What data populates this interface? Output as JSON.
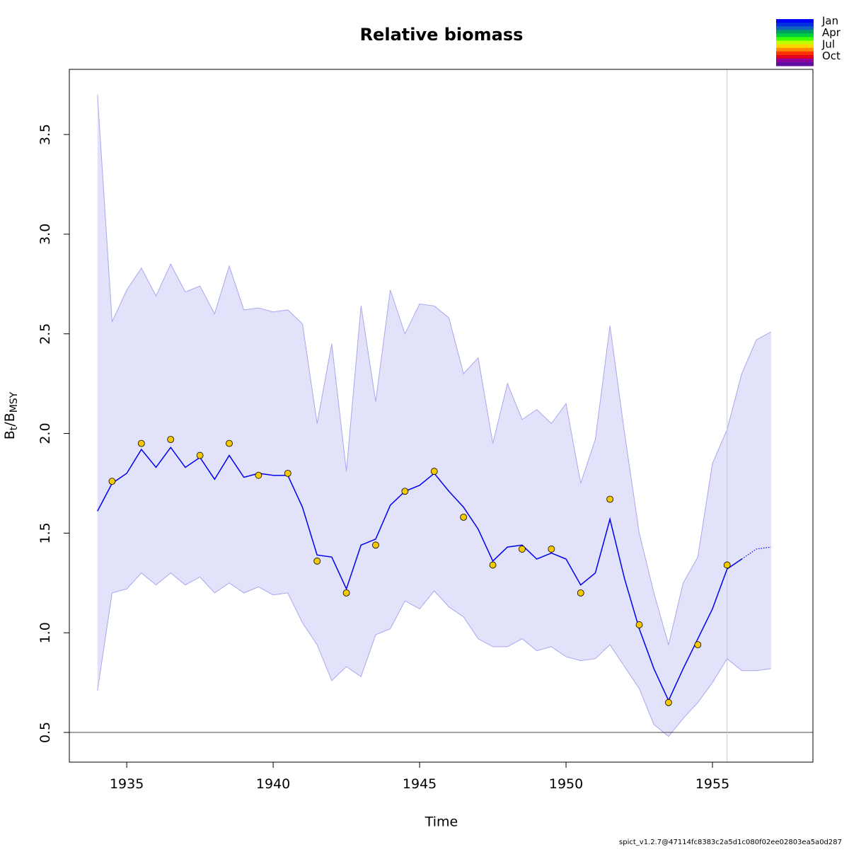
{
  "chart_data": {
    "type": "line",
    "title": "Relative biomass",
    "xlabel": "Time",
    "ylabel": [
      {
        "text": "B"
      },
      {
        "text": "t",
        "sub": true
      },
      {
        "text": "/B"
      },
      {
        "text": "MSY",
        "sub": true
      }
    ],
    "footer": "spict_v1.2.7@47114fc8383c2a5d1c080f02ee02803ea5a0d287",
    "xlim": [
      1933.04,
      1958.43
    ],
    "ylim": [
      0.351,
      3.827
    ],
    "xticks": [
      1935,
      1940,
      1945,
      1950,
      1955
    ],
    "yticks": [
      0.5,
      {
        "value": 1,
        "label": "1.0"
      },
      1.5,
      {
        "value": 2,
        "label": "2.0"
      },
      2.5,
      {
        "value": 3,
        "label": "3.0"
      },
      3.5
    ],
    "x": [
      1934,
      1934.5,
      1935,
      1935.5,
      1936,
      1936.5,
      1937,
      1937.5,
      1938,
      1938.5,
      1939,
      1939.5,
      1940,
      1940.5,
      1941,
      1941.5,
      1942,
      1942.5,
      1943,
      1943.5,
      1944,
      1944.5,
      1945,
      1945.5,
      1946,
      1946.5,
      1947,
      1947.5,
      1948,
      1948.5,
      1949,
      1949.5,
      1950,
      1950.5,
      1951,
      1951.5,
      1952,
      1952.5,
      1953,
      1953.5,
      1954,
      1954.5,
      1955,
      1955.5,
      1956,
      1956.5,
      1957
    ],
    "ci_color": "#e2e2fb",
    "ci_border": "#a8a8ee",
    "ci_upper": [
      3.7,
      2.56,
      2.72,
      2.83,
      2.69,
      2.85,
      2.71,
      2.74,
      2.6,
      2.84,
      2.62,
      2.63,
      2.61,
      2.62,
      2.55,
      2.05,
      2.45,
      1.81,
      2.64,
      2.16,
      2.72,
      2.5,
      2.65,
      2.64,
      2.58,
      2.3,
      2.38,
      1.95,
      2.25,
      2.07,
      2.12,
      2.05,
      2.15,
      1.75,
      1.97,
      2.54,
      2.0,
      1.5,
      1.2,
      0.94,
      1.25,
      1.38,
      1.85,
      2.02,
      2.3,
      2.47,
      2.51
    ],
    "ci_lower": [
      0.71,
      1.2,
      1.22,
      1.3,
      1.24,
      1.3,
      1.24,
      1.28,
      1.2,
      1.25,
      1.2,
      1.23,
      1.19,
      1.2,
      1.05,
      0.94,
      0.76,
      0.83,
      0.78,
      0.99,
      1.02,
      1.16,
      1.12,
      1.21,
      1.13,
      1.08,
      0.97,
      0.93,
      0.93,
      0.97,
      0.91,
      0.93,
      0.88,
      0.86,
      0.87,
      0.94,
      0.83,
      0.72,
      0.54,
      0.48,
      0.57,
      0.65,
      0.75,
      0.87,
      0.81,
      0.81,
      0.82
    ],
    "series": [
      {
        "color": "#0000ee",
        "dashed": false,
        "values": [
          1.61,
          1.75,
          1.8,
          1.92,
          1.83,
          1.93,
          1.83,
          1.88,
          1.77,
          1.89,
          1.78,
          1.8,
          1.79,
          1.79,
          1.63,
          1.39,
          1.38,
          1.22,
          1.44,
          1.47,
          1.64,
          1.71,
          1.74,
          1.8,
          1.71,
          1.63,
          1.52,
          1.36,
          1.43,
          1.44,
          1.37,
          1.4,
          1.37,
          1.24,
          1.3,
          1.57,
          1.27,
          1.02,
          0.82,
          0.66,
          0.82,
          0.97,
          1.12,
          1.32,
          1.37,
          null,
          null
        ]
      },
      {
        "color": "#0000ee",
        "dashed": true,
        "values": [
          null,
          null,
          null,
          null,
          null,
          null,
          null,
          null,
          null,
          null,
          null,
          null,
          null,
          null,
          null,
          null,
          null,
          null,
          null,
          null,
          null,
          null,
          null,
          null,
          null,
          null,
          null,
          null,
          null,
          null,
          null,
          null,
          null,
          null,
          null,
          null,
          null,
          null,
          null,
          null,
          null,
          null,
          null,
          null,
          1.37,
          1.42,
          1.43
        ]
      }
    ],
    "points": {
      "color": "#f5c800",
      "x": [
        1934.5,
        1935.5,
        1936.5,
        1937.5,
        1938.5,
        1939.5,
        1940.5,
        1941.5,
        1942.5,
        1943.5,
        1944.5,
        1945.5,
        1946.5,
        1947.5,
        1948.5,
        1949.5,
        1950.5,
        1951.5,
        1952.5,
        1953.5,
        1954.5,
        1955.5
      ],
      "values": [
        1.76,
        1.95,
        1.97,
        1.89,
        1.95,
        1.79,
        1.8,
        1.36,
        1.2,
        1.44,
        1.71,
        1.81,
        1.58,
        1.34,
        1.42,
        1.42,
        1.2,
        1.67,
        1.04,
        0.65,
        0.94,
        1.34
      ]
    },
    "hlines": [
      0.5
    ],
    "vlines": [
      1955.5
    ],
    "color_key": {
      "labels": [
        "Jan",
        "Apr",
        "Jul",
        "Oct"
      ],
      "colors": [
        "#0000ff",
        "#0030e0",
        "#1060c0",
        "#00a060",
        "#00d040",
        "#40ff00",
        "#c0ff00",
        "#ffd700",
        "#ff8c00",
        "#ff3000",
        "#e00020",
        "#9000a0",
        "#6010a0"
      ]
    }
  }
}
